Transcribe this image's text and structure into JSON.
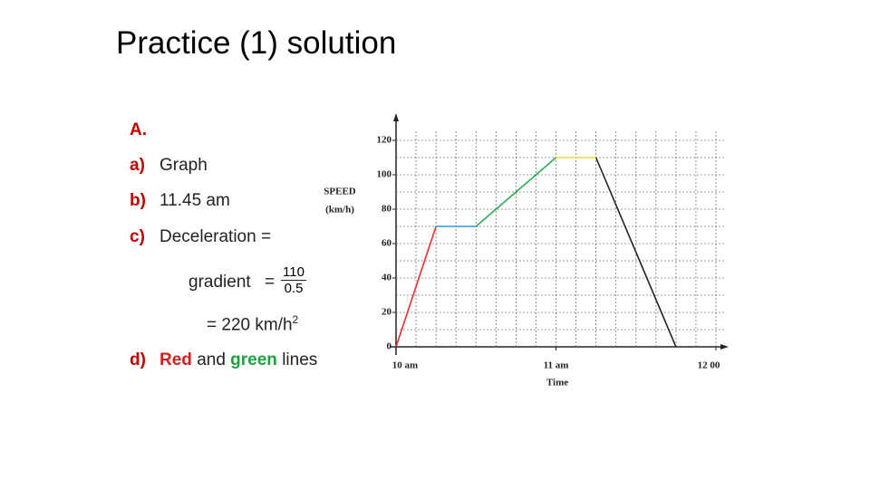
{
  "slide": {
    "title": "Practice (1) solution",
    "heading": "A.",
    "items": [
      {
        "label": "a)",
        "text": "Graph"
      },
      {
        "label": "b)",
        "text": "11.45 am"
      },
      {
        "label": "c)",
        "text": "Deceleration ="
      },
      {
        "label": "d)",
        "parts": [
          "Red",
          "and",
          "green",
          "lines"
        ]
      }
    ],
    "gradient": {
      "text": "gradient",
      "equals": "=",
      "numerator": "110",
      "denominator": "0.5",
      "result": "= 220 km/h",
      "power": "2"
    }
  },
  "chart_data": {
    "type": "line",
    "ylabel": [
      "SPEED",
      "(km/h)"
    ],
    "xlabel": "Time",
    "xlim": [
      10,
      12
    ],
    "ylim": [
      0,
      120
    ],
    "xticks": [
      {
        "value": 10,
        "label": "10 am"
      },
      {
        "value": 11,
        "label": "11 am"
      },
      {
        "value": 12,
        "label": "12 00"
      }
    ],
    "yticks": [
      0,
      20,
      40,
      60,
      80,
      100,
      120
    ],
    "xgrid": [
      10.125,
      10.25,
      10.375,
      10.5,
      10.625,
      10.75,
      10.875,
      11,
      11.125,
      11.25,
      11.375,
      11.5,
      11.625,
      11.75,
      11.875,
      12
    ],
    "ygrid": [
      10,
      20,
      30,
      40,
      50,
      60,
      70,
      80,
      90,
      100,
      110,
      120
    ],
    "series": [
      {
        "color": "#e03030",
        "x": [
          10,
          10.25
        ],
        "values": [
          0,
          70
        ]
      },
      {
        "color": "#2e9be0",
        "x": [
          10.25,
          10.5
        ],
        "values": [
          70,
          70
        ]
      },
      {
        "color": "#2eaa55",
        "x": [
          10.5,
          11
        ],
        "values": [
          70,
          110
        ]
      },
      {
        "color": "#f2e020",
        "x": [
          11,
          11.25
        ],
        "values": [
          110,
          110
        ]
      },
      {
        "color": "#222222",
        "x": [
          11.25,
          11.75
        ],
        "values": [
          110,
          0
        ]
      }
    ]
  }
}
